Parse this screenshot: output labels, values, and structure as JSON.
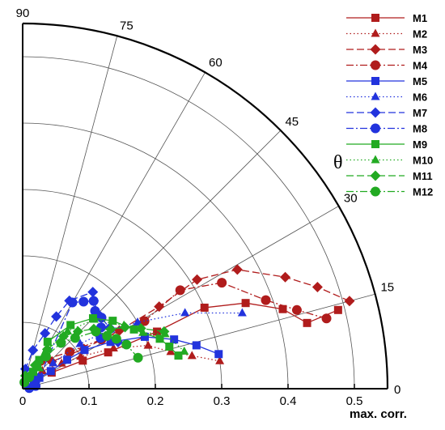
{
  "chart_data": {
    "type": "scatter",
    "coordinate_system": "polar-quadrant",
    "radial_axis": {
      "label": "max. corr.",
      "range": [
        0,
        0.55
      ],
      "ticks": [
        "0",
        "0.1",
        "0.2",
        "0.3",
        "0.4",
        "0.5"
      ],
      "tick_values": [
        0,
        0.1,
        0.2,
        0.3,
        0.4,
        0.5
      ]
    },
    "angular_axis": {
      "label": "θ",
      "unit": "degrees",
      "range": [
        0,
        90
      ],
      "ticks": [
        "0",
        "15",
        "30",
        "45",
        "60",
        "75",
        "90"
      ],
      "tick_values": [
        0,
        15,
        30,
        45,
        60,
        75,
        90
      ]
    },
    "grid": true,
    "legend_position": "top-right",
    "series": [
      {
        "name": "M1",
        "color": "#b01c1c",
        "marker": "square",
        "dash": "solid",
        "points": [
          [
            0.49,
            14
          ],
          [
            0.44,
            13
          ],
          [
            0.41,
            17
          ],
          [
            0.36,
            21
          ],
          [
            0.3,
            24
          ],
          [
            0.22,
            23
          ],
          [
            0.14,
            23
          ],
          [
            0.1,
            25
          ],
          [
            0.05,
            29
          ]
        ]
      },
      {
        "name": "M2",
        "color": "#b01c1c",
        "marker": "triangle",
        "dash": "dotted",
        "points": [
          [
            0.3,
            8
          ],
          [
            0.26,
            11
          ],
          [
            0.23,
            14
          ],
          [
            0.2,
            19
          ],
          [
            0.15,
            24
          ],
          [
            0.1,
            29
          ],
          [
            0.07,
            33
          ],
          [
            0.04,
            42
          ]
        ]
      },
      {
        "name": "M3",
        "color": "#b01c1c",
        "marker": "diamond",
        "dash": "dashed",
        "points": [
          [
            0.51,
            15
          ],
          [
            0.47,
            19
          ],
          [
            0.43,
            23
          ],
          [
            0.37,
            29
          ],
          [
            0.31,
            32
          ],
          [
            0.24,
            31
          ],
          [
            0.17,
            31
          ],
          [
            0.11,
            33
          ],
          [
            0.06,
            43
          ]
        ]
      },
      {
        "name": "M4",
        "color": "#b01c1c",
        "marker": "circle",
        "dash": "dashdot",
        "points": [
          [
            0.47,
            13
          ],
          [
            0.43,
            16
          ],
          [
            0.39,
            20
          ],
          [
            0.34,
            28
          ],
          [
            0.28,
            32
          ],
          [
            0.21,
            29
          ],
          [
            0.14,
            32
          ],
          [
            0.09,
            38
          ],
          [
            0.05,
            57
          ]
        ]
      },
      {
        "name": "M5",
        "color": "#2233dd",
        "marker": "square",
        "dash": "solid",
        "points": [
          [
            0.3,
            10
          ],
          [
            0.27,
            14
          ],
          [
            0.24,
            18
          ],
          [
            0.2,
            23
          ],
          [
            0.15,
            28
          ],
          [
            0.11,
            32
          ],
          [
            0.08,
            33
          ],
          [
            0.05,
            32
          ],
          [
            0.03,
            33
          ],
          [
            0.025,
            36
          ],
          [
            0.02,
            33
          ]
        ]
      },
      {
        "name": "M6",
        "color": "#2233dd",
        "marker": "triangle",
        "dash": "dotted",
        "points": [
          [
            0.35,
            19
          ],
          [
            0.27,
            25
          ],
          [
            0.2,
            30
          ],
          [
            0.16,
            34
          ],
          [
            0.11,
            38
          ],
          [
            0.06,
            40
          ],
          [
            0.03,
            37
          ]
        ]
      },
      {
        "name": "M7",
        "color": "#2233dd",
        "marker": "diamond",
        "dash": "dashed",
        "points": [
          [
            0.16,
            26
          ],
          [
            0.16,
            35
          ],
          [
            0.16,
            44
          ],
          [
            0.17,
            51
          ],
          [
            0.18,
            54
          ],
          [
            0.15,
            62
          ],
          [
            0.12,
            65
          ],
          [
            0.09,
            68
          ],
          [
            0.06,
            75
          ],
          [
            0.03,
            82
          ]
        ]
      },
      {
        "name": "M8",
        "color": "#2233dd",
        "marker": "circle",
        "dash": "dashdot",
        "points": [
          [
            0.14,
            33
          ],
          [
            0.15,
            38
          ],
          [
            0.16,
            42
          ],
          [
            0.16,
            47
          ],
          [
            0.17,
            51
          ],
          [
            0.16,
            55
          ],
          [
            0.15,
            60
          ],
          [
            0.02,
            12
          ],
          [
            0.01,
            5
          ]
        ]
      },
      {
        "name": "M9",
        "color": "#22aa22",
        "marker": "square",
        "dash": "solid",
        "points": [
          [
            0.24,
            12
          ],
          [
            0.23,
            16
          ],
          [
            0.22,
            20
          ],
          [
            0.19,
            28
          ],
          [
            0.17,
            37
          ],
          [
            0.15,
            45
          ],
          [
            0.12,
            53
          ],
          [
            0.08,
            62
          ],
          [
            0.05,
            60
          ],
          [
            0.03,
            58
          ]
        ]
      },
      {
        "name": "M10",
        "color": "#22aa22",
        "marker": "triangle",
        "dash": "dotted",
        "points": [
          [
            0.25,
            13
          ],
          [
            0.23,
            21
          ],
          [
            0.2,
            25
          ],
          [
            0.18,
            32
          ],
          [
            0.15,
            44
          ],
          [
            0.11,
            52
          ],
          [
            0.07,
            58
          ],
          [
            0.04,
            51
          ]
        ]
      },
      {
        "name": "M11",
        "color": "#22aa22",
        "marker": "diamond",
        "dash": "dashed",
        "points": [
          [
            0.23,
            22
          ],
          [
            0.2,
            27
          ],
          [
            0.18,
            31
          ],
          [
            0.16,
            34
          ],
          [
            0.14,
            40
          ],
          [
            0.12,
            46
          ],
          [
            0.1,
            52
          ],
          [
            0.07,
            58
          ],
          [
            0.04,
            62
          ],
          [
            0.02,
            78
          ]
        ]
      },
      {
        "name": "M12",
        "color": "#22aa22",
        "marker": "circle",
        "dash": "dashdot",
        "points": [
          [
            0.18,
            15
          ],
          [
            0.17,
            23
          ],
          [
            0.16,
            28
          ],
          [
            0.15,
            32
          ],
          [
            0.14,
            38
          ],
          [
            0.11,
            44
          ],
          [
            0.09,
            50
          ],
          [
            0.06,
            54
          ],
          [
            0.04,
            58
          ],
          [
            0.02,
            60
          ],
          [
            0.01,
            75
          ]
        ]
      }
    ]
  }
}
